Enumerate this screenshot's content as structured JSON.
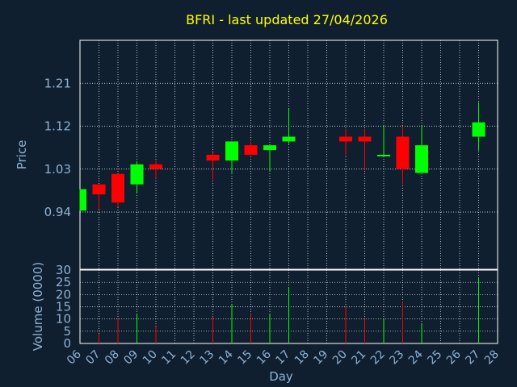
{
  "colors": {
    "background": "#0f1f2f",
    "title": "#ffff00",
    "axis_text": "#8fb2d4",
    "grid": "#ffffff",
    "up": "#00ff00",
    "down": "#ff0000"
  },
  "chart_data": {
    "type": "candlestick",
    "title": "BFRI - last updated 27/04/2026",
    "xlabel": "Day",
    "price_ylabel": "Price",
    "volume_ylabel": "Volume (0000)",
    "x_ticks": [
      "06",
      "07",
      "08",
      "09",
      "10",
      "11",
      "12",
      "13",
      "14",
      "15",
      "16",
      "17",
      "18",
      "19",
      "20",
      "21",
      "22",
      "23",
      "24",
      "25",
      "26",
      "27",
      "28"
    ],
    "price_ticks": [
      "0.94",
      "1.03",
      "1.12",
      "1.21"
    ],
    "price_tick_values": [
      0.94,
      1.03,
      1.12,
      1.21
    ],
    "price_ylim": [
      0.82,
      1.3
    ],
    "volume_ticks": [
      "0",
      "5",
      "10",
      "15",
      "20",
      "25",
      "30"
    ],
    "volume_tick_values": [
      0,
      5,
      10,
      15,
      20,
      25,
      30
    ],
    "volume_ylim": [
      0,
      30
    ],
    "grid": true,
    "candles": [
      {
        "day": 6,
        "open": 0.943,
        "close": 0.988,
        "high": 0.988,
        "low": 0.943,
        "volume": 0
      },
      {
        "day": 7,
        "open": 0.998,
        "close": 0.977,
        "high": 0.998,
        "low": 0.945,
        "volume": 4
      },
      {
        "day": 8,
        "open": 1.02,
        "close": 0.96,
        "high": 1.02,
        "low": 0.95,
        "volume": 10
      },
      {
        "day": 9,
        "open": 0.998,
        "close": 1.04,
        "high": 1.047,
        "low": 0.98,
        "volume": 12
      },
      {
        "day": 10,
        "open": 1.04,
        "close": 1.03,
        "high": 1.048,
        "low": 1.01,
        "volume": 7
      },
      {
        "day": 13,
        "open": 1.06,
        "close": 1.048,
        "high": 1.065,
        "low": 1.008,
        "volume": 11
      },
      {
        "day": 14,
        "open": 1.048,
        "close": 1.088,
        "high": 1.088,
        "low": 1.022,
        "volume": 16
      },
      {
        "day": 15,
        "open": 1.08,
        "close": 1.06,
        "high": 1.088,
        "low": 1.06,
        "volume": 12
      },
      {
        "day": 16,
        "open": 1.07,
        "close": 1.08,
        "high": 1.08,
        "low": 1.025,
        "volume": 12
      },
      {
        "day": 17,
        "open": 1.088,
        "close": 1.098,
        "high": 1.157,
        "low": 1.083,
        "volume": 23
      },
      {
        "day": 20,
        "open": 1.098,
        "close": 1.088,
        "high": 1.114,
        "low": 1.058,
        "volume": 15
      },
      {
        "day": 21,
        "open": 1.098,
        "close": 1.088,
        "high": 1.114,
        "low": 1.028,
        "volume": 10
      },
      {
        "day": 22,
        "open": 1.058,
        "close": 1.06,
        "high": 1.12,
        "low": 1.058,
        "volume": 10
      },
      {
        "day": 23,
        "open": 1.098,
        "close": 1.03,
        "high": 1.12,
        "low": 0.998,
        "volume": 17
      },
      {
        "day": 24,
        "open": 1.022,
        "close": 1.08,
        "high": 1.12,
        "low": 1.022,
        "volume": 8
      },
      {
        "day": 27,
        "open": 1.098,
        "close": 1.128,
        "high": 1.17,
        "low": 1.068,
        "volume": 27
      }
    ]
  }
}
